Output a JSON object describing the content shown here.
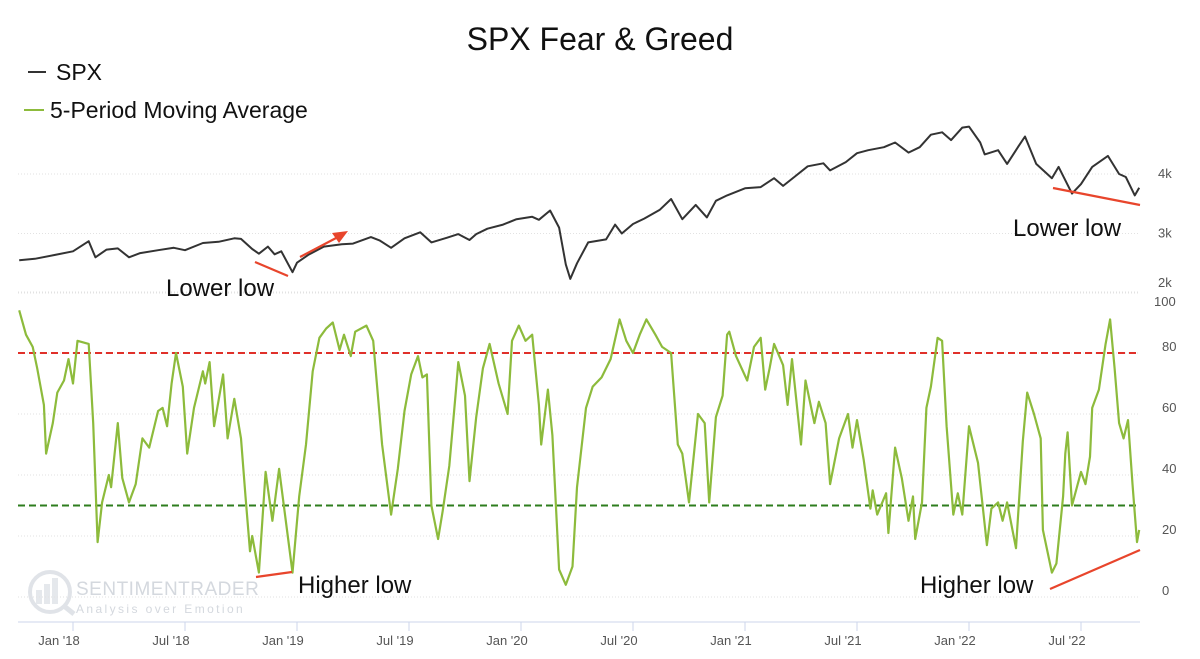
{
  "chart_data": [
    {
      "type": "line",
      "title": "SPX Fear & Greed",
      "legend": [
        "SPX",
        "5-Period Moving Average"
      ],
      "legend_position": "top-left",
      "series_name": "SPX",
      "color": "#333333",
      "yaxis": {
        "ticks": [
          2000,
          3000,
          4000
        ],
        "tick_labels": [
          "2k",
          "3k",
          "4k"
        ],
        "side": "right"
      },
      "points": [
        [
          2017.76,
          2550
        ],
        [
          2017.83,
          2575
        ],
        [
          2017.92,
          2640
        ],
        [
          2018.0,
          2700
        ],
        [
          2018.07,
          2870
        ],
        [
          2018.1,
          2600
        ],
        [
          2018.15,
          2730
        ],
        [
          2018.2,
          2750
        ],
        [
          2018.25,
          2600
        ],
        [
          2018.3,
          2670
        ],
        [
          2018.38,
          2720
        ],
        [
          2018.45,
          2760
        ],
        [
          2018.5,
          2720
        ],
        [
          2018.58,
          2840
        ],
        [
          2018.65,
          2860
        ],
        [
          2018.72,
          2920
        ],
        [
          2018.75,
          2910
        ],
        [
          2018.8,
          2740
        ],
        [
          2018.83,
          2660
        ],
        [
          2018.87,
          2780
        ],
        [
          2018.9,
          2650
        ],
        [
          2018.93,
          2700
        ],
        [
          2018.98,
          2350
        ],
        [
          2019.0,
          2510
        ],
        [
          2019.05,
          2640
        ],
        [
          2019.12,
          2780
        ],
        [
          2019.2,
          2820
        ],
        [
          2019.25,
          2830
        ],
        [
          2019.33,
          2940
        ],
        [
          2019.37,
          2880
        ],
        [
          2019.42,
          2760
        ],
        [
          2019.48,
          2920
        ],
        [
          2019.55,
          3020
        ],
        [
          2019.6,
          2850
        ],
        [
          2019.67,
          2930
        ],
        [
          2019.72,
          2990
        ],
        [
          2019.77,
          2890
        ],
        [
          2019.8,
          2990
        ],
        [
          2019.85,
          3080
        ],
        [
          2019.92,
          3150
        ],
        [
          2019.98,
          3240
        ],
        [
          2020.05,
          3280
        ],
        [
          2020.08,
          3230
        ],
        [
          2020.13,
          3386
        ],
        [
          2020.17,
          3100
        ],
        [
          2020.2,
          2480
        ],
        [
          2020.22,
          2237
        ],
        [
          2020.25,
          2500
        ],
        [
          2020.3,
          2850
        ],
        [
          2020.38,
          2900
        ],
        [
          2020.42,
          3150
        ],
        [
          2020.45,
          3000
        ],
        [
          2020.5,
          3160
        ],
        [
          2020.55,
          3250
        ],
        [
          2020.62,
          3400
        ],
        [
          2020.67,
          3580
        ],
        [
          2020.72,
          3240
        ],
        [
          2020.78,
          3480
        ],
        [
          2020.83,
          3270
        ],
        [
          2020.87,
          3550
        ],
        [
          2020.92,
          3640
        ],
        [
          2021.0,
          3760
        ],
        [
          2021.07,
          3780
        ],
        [
          2021.13,
          3930
        ],
        [
          2021.17,
          3800
        ],
        [
          2021.22,
          3950
        ],
        [
          2021.28,
          4130
        ],
        [
          2021.35,
          4180
        ],
        [
          2021.38,
          4060
        ],
        [
          2021.45,
          4200
        ],
        [
          2021.5,
          4350
        ],
        [
          2021.55,
          4400
        ],
        [
          2021.62,
          4450
        ],
        [
          2021.67,
          4530
        ],
        [
          2021.73,
          4360
        ],
        [
          2021.78,
          4450
        ],
        [
          2021.83,
          4660
        ],
        [
          2021.88,
          4700
        ],
        [
          2021.92,
          4570
        ],
        [
          2021.97,
          4780
        ],
        [
          2022.0,
          4796
        ],
        [
          2022.05,
          4530
        ],
        [
          2022.07,
          4330
        ],
        [
          2022.13,
          4400
        ],
        [
          2022.17,
          4170
        ],
        [
          2022.22,
          4460
        ],
        [
          2022.25,
          4630
        ],
        [
          2022.3,
          4170
        ],
        [
          2022.37,
          3930
        ],
        [
          2022.4,
          4120
        ],
        [
          2022.46,
          3670
        ],
        [
          2022.5,
          3830
        ],
        [
          2022.55,
          4120
        ],
        [
          2022.62,
          4305
        ],
        [
          2022.67,
          4000
        ],
        [
          2022.7,
          3950
        ],
        [
          2022.74,
          3640
        ],
        [
          2022.76,
          3770
        ]
      ]
    },
    {
      "type": "line",
      "series_name": "5-Period Moving Average",
      "color": "#8dbb3c",
      "ylim": [
        0,
        100
      ],
      "yaxis": {
        "ticks": [
          0,
          20,
          40,
          60,
          80,
          100
        ],
        "tick_labels": [
          "0",
          "20",
          "40",
          "60",
          "80",
          "100"
        ],
        "side": "right"
      },
      "reference_lines": [
        {
          "value": 80,
          "color": "#e0302a"
        },
        {
          "value": 30,
          "color": "#2e7d1e"
        }
      ],
      "points": [
        [
          2017.76,
          94
        ],
        [
          2017.79,
          86
        ],
        [
          2017.82,
          82
        ],
        [
          2017.84,
          75
        ],
        [
          2017.87,
          63
        ],
        [
          2017.88,
          47
        ],
        [
          2017.91,
          57
        ],
        [
          2017.93,
          67
        ],
        [
          2017.96,
          71
        ],
        [
          2017.98,
          78
        ],
        [
          2018.0,
          70
        ],
        [
          2018.02,
          84
        ],
        [
          2018.07,
          83
        ],
        [
          2018.09,
          57
        ],
        [
          2018.11,
          18
        ],
        [
          2018.13,
          31
        ],
        [
          2018.16,
          40
        ],
        [
          2018.17,
          36
        ],
        [
          2018.2,
          57
        ],
        [
          2018.22,
          39
        ],
        [
          2018.25,
          31
        ],
        [
          2018.28,
          37
        ],
        [
          2018.31,
          52
        ],
        [
          2018.34,
          49
        ],
        [
          2018.38,
          61
        ],
        [
          2018.4,
          62
        ],
        [
          2018.42,
          56
        ],
        [
          2018.44,
          70
        ],
        [
          2018.46,
          80
        ],
        [
          2018.49,
          69
        ],
        [
          2018.51,
          47
        ],
        [
          2018.54,
          62
        ],
        [
          2018.58,
          74
        ],
        [
          2018.59,
          70
        ],
        [
          2018.61,
          77
        ],
        [
          2018.63,
          56
        ],
        [
          2018.67,
          73
        ],
        [
          2018.69,
          52
        ],
        [
          2018.72,
          65
        ],
        [
          2018.75,
          52
        ],
        [
          2018.77,
          33
        ],
        [
          2018.79,
          15
        ],
        [
          2018.8,
          20
        ],
        [
          2018.83,
          8
        ],
        [
          2018.86,
          41
        ],
        [
          2018.89,
          25
        ],
        [
          2018.92,
          42
        ],
        [
          2018.95,
          25
        ],
        [
          2018.98,
          8
        ],
        [
          2019.01,
          33
        ],
        [
          2019.04,
          50
        ],
        [
          2019.07,
          74
        ],
        [
          2019.1,
          85
        ],
        [
          2019.13,
          88
        ],
        [
          2019.16,
          90
        ],
        [
          2019.19,
          81
        ],
        [
          2019.21,
          86
        ],
        [
          2019.24,
          79
        ],
        [
          2019.26,
          87
        ],
        [
          2019.31,
          89
        ],
        [
          2019.34,
          84
        ],
        [
          2019.38,
          50
        ],
        [
          2019.42,
          27
        ],
        [
          2019.45,
          42
        ],
        [
          2019.48,
          61
        ],
        [
          2019.51,
          73
        ],
        [
          2019.54,
          79
        ],
        [
          2019.56,
          72
        ],
        [
          2019.58,
          73
        ],
        [
          2019.6,
          30
        ],
        [
          2019.63,
          19
        ],
        [
          2019.65,
          28
        ],
        [
          2019.68,
          43
        ],
        [
          2019.71,
          68
        ],
        [
          2019.72,
          77
        ],
        [
          2019.75,
          66
        ],
        [
          2019.77,
          38
        ],
        [
          2019.8,
          59
        ],
        [
          2019.83,
          75
        ],
        [
          2019.86,
          83
        ],
        [
          2019.9,
          70
        ],
        [
          2019.94,
          60
        ],
        [
          2019.96,
          84
        ],
        [
          2019.99,
          89
        ],
        [
          2020.02,
          84
        ],
        [
          2020.05,
          86
        ],
        [
          2020.08,
          63
        ],
        [
          2020.09,
          50
        ],
        [
          2020.12,
          68
        ],
        [
          2020.14,
          53
        ],
        [
          2020.17,
          9
        ],
        [
          2020.2,
          4
        ],
        [
          2020.23,
          10
        ],
        [
          2020.25,
          36
        ],
        [
          2020.29,
          62
        ],
        [
          2020.32,
          69
        ],
        [
          2020.36,
          72
        ],
        [
          2020.4,
          78
        ],
        [
          2020.44,
          91
        ],
        [
          2020.47,
          84
        ],
        [
          2020.5,
          80
        ],
        [
          2020.53,
          86
        ],
        [
          2020.56,
          91
        ],
        [
          2020.6,
          86
        ],
        [
          2020.63,
          82
        ],
        [
          2020.67,
          80
        ],
        [
          2020.7,
          50
        ],
        [
          2020.72,
          47
        ],
        [
          2020.75,
          31
        ],
        [
          2020.79,
          60
        ],
        [
          2020.82,
          57
        ],
        [
          2020.84,
          31
        ],
        [
          2020.87,
          59
        ],
        [
          2020.9,
          66
        ],
        [
          2020.92,
          86
        ],
        [
          2020.93,
          87
        ],
        [
          2020.96,
          79
        ],
        [
          2021.01,
          71
        ],
        [
          2021.04,
          82
        ],
        [
          2021.07,
          85
        ],
        [
          2021.09,
          68
        ],
        [
          2021.11,
          75
        ],
        [
          2021.13,
          83
        ],
        [
          2021.17,
          76
        ],
        [
          2021.19,
          63
        ],
        [
          2021.21,
          78
        ],
        [
          2021.25,
          50
        ],
        [
          2021.27,
          71
        ],
        [
          2021.31,
          57
        ],
        [
          2021.33,
          64
        ],
        [
          2021.36,
          57
        ],
        [
          2021.38,
          37
        ],
        [
          2021.42,
          52
        ],
        [
          2021.46,
          60
        ],
        [
          2021.48,
          49
        ],
        [
          2021.5,
          58
        ],
        [
          2021.53,
          45
        ],
        [
          2021.56,
          29
        ],
        [
          2021.57,
          35
        ],
        [
          2021.59,
          27
        ],
        [
          2021.63,
          34
        ],
        [
          2021.64,
          21
        ],
        [
          2021.67,
          49
        ],
        [
          2021.7,
          39
        ],
        [
          2021.73,
          25
        ],
        [
          2021.75,
          33
        ],
        [
          2021.76,
          19
        ],
        [
          2021.79,
          31
        ],
        [
          2021.81,
          62
        ],
        [
          2021.83,
          69
        ],
        [
          2021.86,
          85
        ],
        [
          2021.88,
          84
        ],
        [
          2021.9,
          56
        ],
        [
          2021.93,
          27
        ],
        [
          2021.95,
          34
        ],
        [
          2021.97,
          27
        ],
        [
          2022.0,
          56
        ],
        [
          2022.04,
          44
        ],
        [
          2022.08,
          17
        ],
        [
          2022.1,
          29
        ],
        [
          2022.13,
          31
        ],
        [
          2022.15,
          25
        ],
        [
          2022.17,
          31
        ],
        [
          2022.21,
          16
        ],
        [
          2022.24,
          51
        ],
        [
          2022.26,
          67
        ],
        [
          2022.29,
          60
        ],
        [
          2022.32,
          52
        ],
        [
          2022.33,
          22
        ],
        [
          2022.37,
          8
        ],
        [
          2022.39,
          11
        ],
        [
          2022.42,
          33
        ],
        [
          2022.43,
          47
        ],
        [
          2022.44,
          54
        ],
        [
          2022.46,
          30
        ],
        [
          2022.5,
          41
        ],
        [
          2022.52,
          37
        ],
        [
          2022.54,
          46
        ],
        [
          2022.55,
          62
        ],
        [
          2022.58,
          68
        ],
        [
          2022.61,
          83
        ],
        [
          2022.63,
          91
        ],
        [
          2022.65,
          75
        ],
        [
          2022.67,
          57
        ],
        [
          2022.69,
          52
        ],
        [
          2022.71,
          58
        ],
        [
          2022.73,
          37
        ],
        [
          2022.75,
          18
        ],
        [
          2022.76,
          22
        ]
      ]
    }
  ],
  "xaxis": {
    "ticks": [
      2018.0,
      2018.5,
      2019.0,
      2019.5,
      2020.0,
      2020.5,
      2021.0,
      2021.5,
      2022.0,
      2022.5
    ],
    "tick_labels": [
      "Jan '18",
      "Jul '18",
      "Jan '19",
      "Jul '19",
      "Jan '20",
      "Jul '20",
      "Jan '21",
      "Jul '21",
      "Jan '22",
      "Jul '22"
    ]
  },
  "title": "SPX Fear & Greed",
  "legend": {
    "spx": "SPX",
    "ma": "5-Period Moving Average"
  },
  "annotations": {
    "lower_low_1": "Lower low",
    "lower_low_2": "Lower low",
    "higher_low_1": "Higher low",
    "higher_low_2": "Higher low"
  },
  "watermark": {
    "brand": "SENTIMENTRADER",
    "tagline": "Analysis over Emotion"
  },
  "colors": {
    "annotation": "#e8452c",
    "spx": "#333333",
    "ma": "#8dbb3c"
  }
}
